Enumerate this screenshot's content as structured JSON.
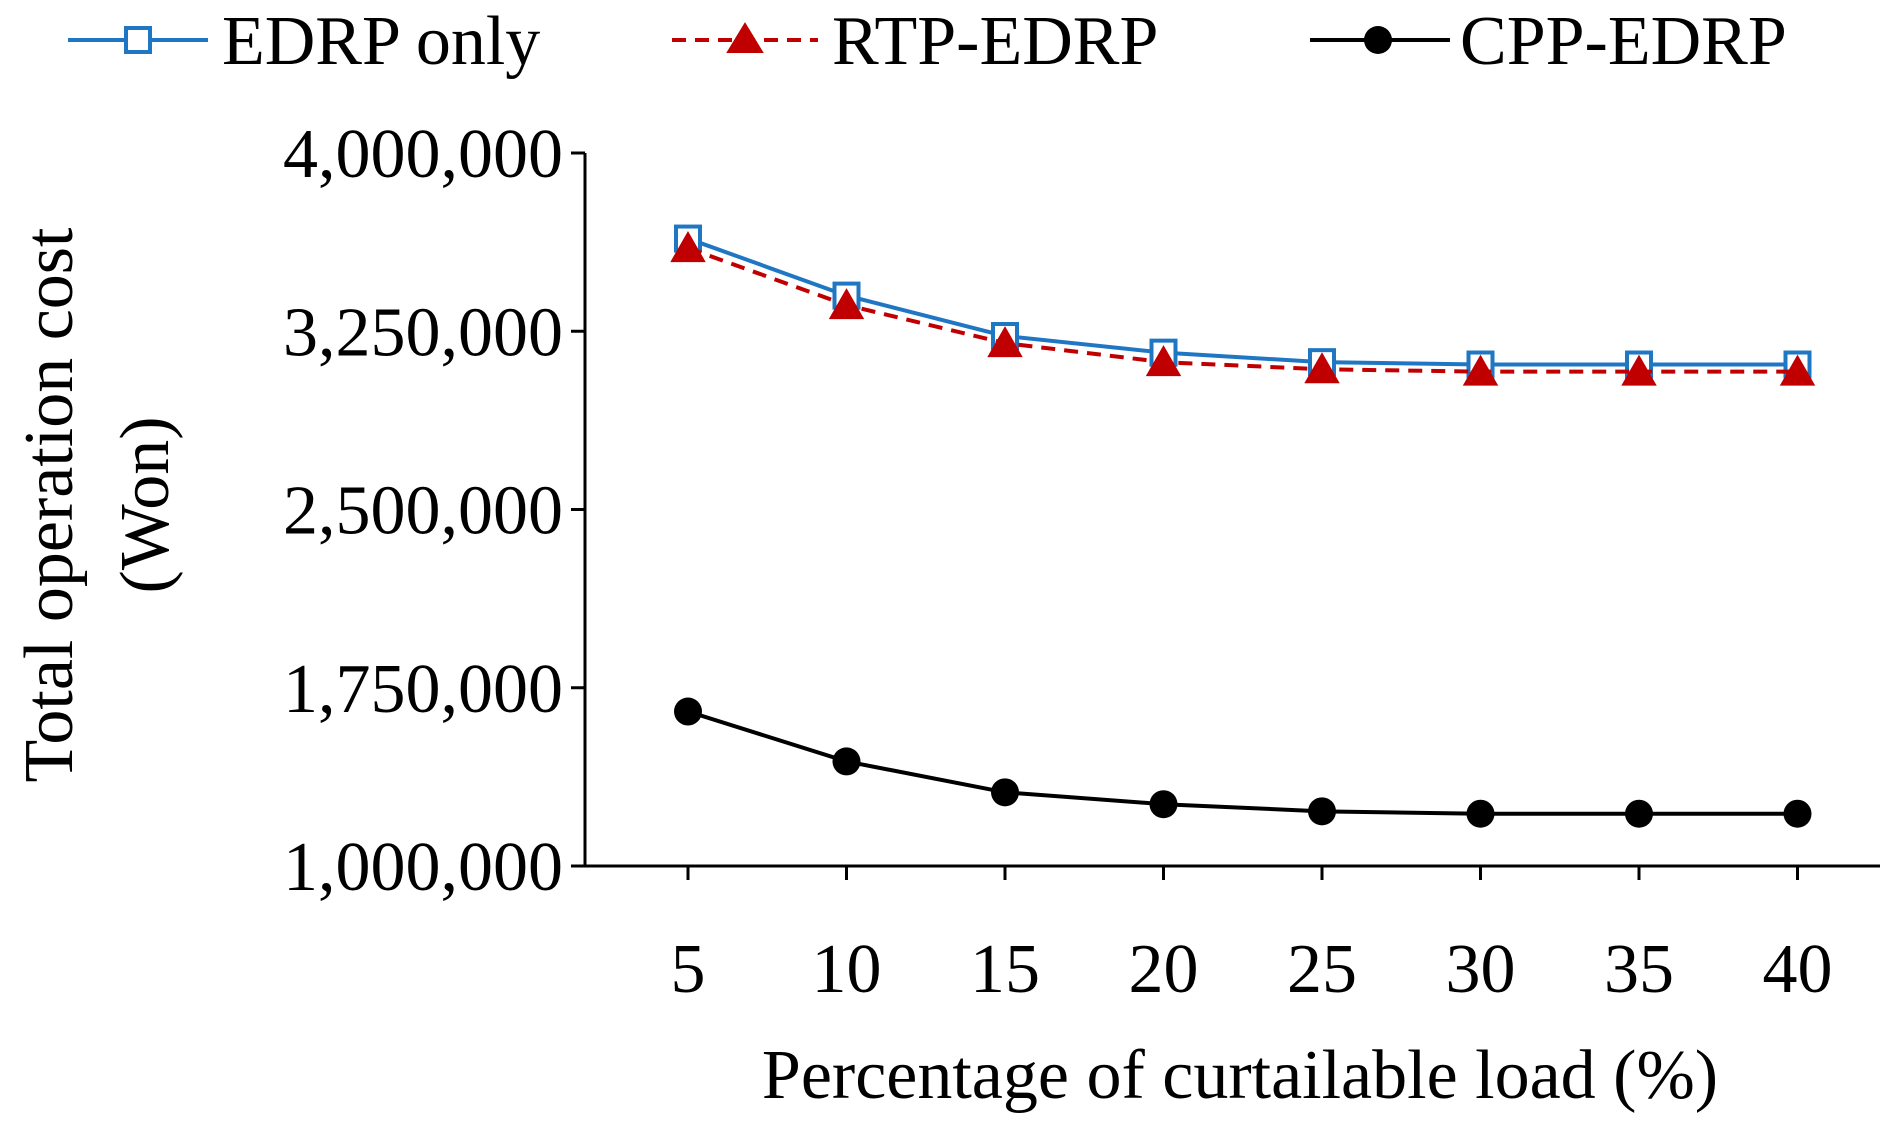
{
  "chart_data": {
    "type": "line",
    "title": "",
    "xlabel": "Percentage of curtailable load (%)",
    "ylabel_line1": "Total operation cost",
    "ylabel_line2": "(Won)",
    "categories": [
      "5",
      "10",
      "15",
      "20",
      "25",
      "30",
      "35",
      "40"
    ],
    "ylim": [
      1000000,
      4000000
    ],
    "yticks": [
      1000000,
      1750000,
      2500000,
      3250000,
      4000000
    ],
    "ytick_labels": [
      "1,000,000",
      "1,750,000",
      "2,500,000",
      "3,250,000",
      "4,000,000"
    ],
    "grid": false,
    "legend_position": "top",
    "series": [
      {
        "name": "EDRP only",
        "values": [
          3640000,
          3400000,
          3230000,
          3160000,
          3120000,
          3110000,
          3110000,
          3110000
        ],
        "color": "#1f77c4",
        "marker": "open-square",
        "dash": "solid"
      },
      {
        "name": "RTP-EDRP",
        "values": [
          3600000,
          3360000,
          3200000,
          3120000,
          3090000,
          3080000,
          3080000,
          3080000
        ],
        "color": "#c00000",
        "marker": "filled-triangle",
        "dash": "dashed"
      },
      {
        "name": "CPP-EDRP",
        "values": [
          1650000,
          1440000,
          1310000,
          1260000,
          1230000,
          1220000,
          1220000,
          1220000
        ],
        "color": "#000000",
        "marker": "filled-circle",
        "dash": "solid"
      }
    ]
  }
}
